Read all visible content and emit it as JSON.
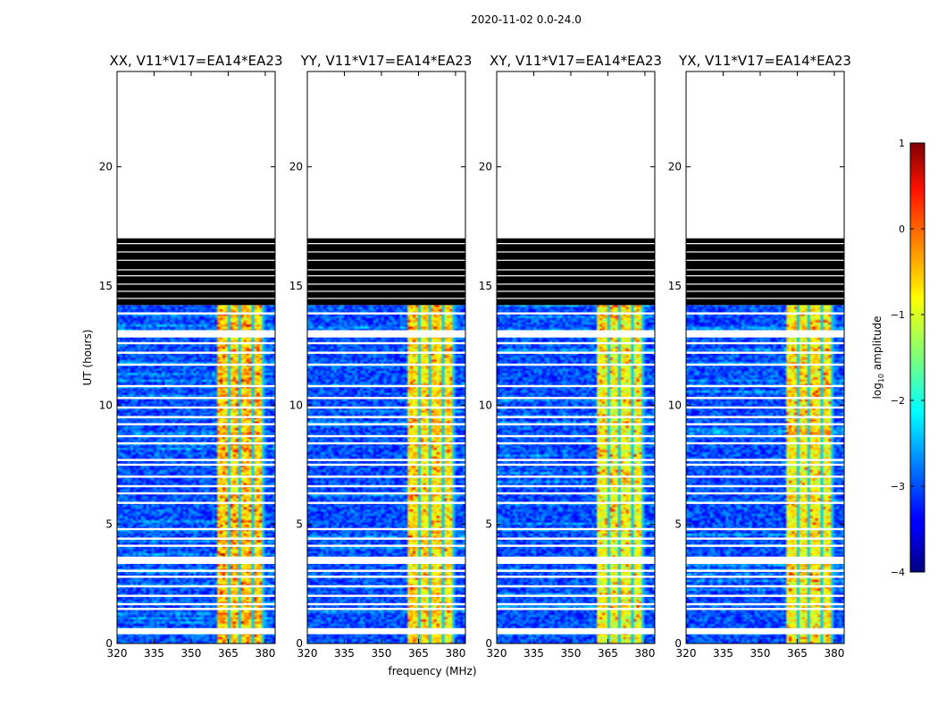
{
  "figure": {
    "suptitle": "2020-11-02 0.0-24.0",
    "xlabel": "frequency (MHz)",
    "ylabel": "UT (hours)"
  },
  "chart_data": [
    {
      "type": "heatmap",
      "title": "XX, V11*V17=EA14*EA23",
      "xlim": [
        320,
        384
      ],
      "ylim": [
        0,
        24
      ],
      "xticks": [
        "320",
        "335",
        "350",
        "365",
        "380"
      ],
      "yticks": [
        "0",
        "5",
        "10",
        "15",
        "20"
      ],
      "value": "log10 amplitude",
      "background_level": -3.0,
      "rfi_band_mhz": [
        361,
        380
      ],
      "rfi_level": -0.7,
      "flagged_channels_mhz": [
        365.5,
        370,
        374.5,
        379
      ],
      "data_end_hours": 14.2,
      "flagged_block_hours": [
        14.2,
        17.0
      ]
    },
    {
      "type": "heatmap",
      "title": "YY, V11*V17=EA14*EA23",
      "xlim": [
        320,
        384
      ],
      "ylim": [
        0,
        24
      ],
      "xticks": [
        "320",
        "335",
        "350",
        "365",
        "380"
      ],
      "yticks": [
        "0",
        "5",
        "10",
        "15",
        "20"
      ],
      "value": "log10 amplitude",
      "background_level": -3.0,
      "rfi_band_mhz": [
        361,
        380
      ],
      "rfi_level": -0.8,
      "flagged_channels_mhz": [
        365.5,
        370,
        374.5,
        379
      ],
      "data_end_hours": 14.2,
      "flagged_block_hours": [
        14.2,
        17.0
      ]
    },
    {
      "type": "heatmap",
      "title": "XY, V11*V17=EA14*EA23",
      "xlim": [
        320,
        384
      ],
      "ylim": [
        0,
        24
      ],
      "xticks": [
        "320",
        "335",
        "350",
        "365",
        "380"
      ],
      "yticks": [
        "0",
        "5",
        "10",
        "15",
        "20"
      ],
      "value": "log10 amplitude",
      "background_level": -3.0,
      "rfi_band_mhz": [
        361,
        380
      ],
      "rfi_level": -1.0,
      "flagged_channels_mhz": [
        365.5,
        370,
        374.5,
        379
      ],
      "data_end_hours": 14.2,
      "flagged_block_hours": [
        14.2,
        17.0
      ]
    },
    {
      "type": "heatmap",
      "title": "YX, V11*V17=EA14*EA23",
      "xlim": [
        320,
        384
      ],
      "ylim": [
        0,
        24
      ],
      "xticks": [
        "320",
        "335",
        "350",
        "365",
        "380"
      ],
      "yticks": [
        "0",
        "5",
        "10",
        "15",
        "20"
      ],
      "value": "log10 amplitude",
      "background_level": -3.0,
      "rfi_band_mhz": [
        361,
        380
      ],
      "rfi_level": -0.9,
      "flagged_channels_mhz": [
        365.5,
        370,
        374.5,
        379
      ],
      "data_end_hours": 14.2,
      "flagged_block_hours": [
        14.2,
        17.0
      ]
    }
  ],
  "flagged_rows_hours": [
    0.5,
    0.6,
    1.45,
    1.65,
    2.0,
    2.4,
    2.8,
    3.05,
    3.45,
    3.6,
    4.1,
    4.4,
    4.8,
    5.9,
    6.3,
    6.6,
    7.0,
    7.5,
    7.7,
    8.4,
    8.7,
    9.2,
    9.5,
    9.9,
    10.3,
    10.8,
    11.7,
    12.2,
    12.6,
    12.95,
    13.1,
    13.85
  ],
  "colorbar": {
    "label": "log10 amplitude",
    "range": [
      -4,
      1
    ],
    "ticks": [
      "1",
      "0",
      "−1",
      "−2",
      "−3",
      "−4"
    ]
  }
}
